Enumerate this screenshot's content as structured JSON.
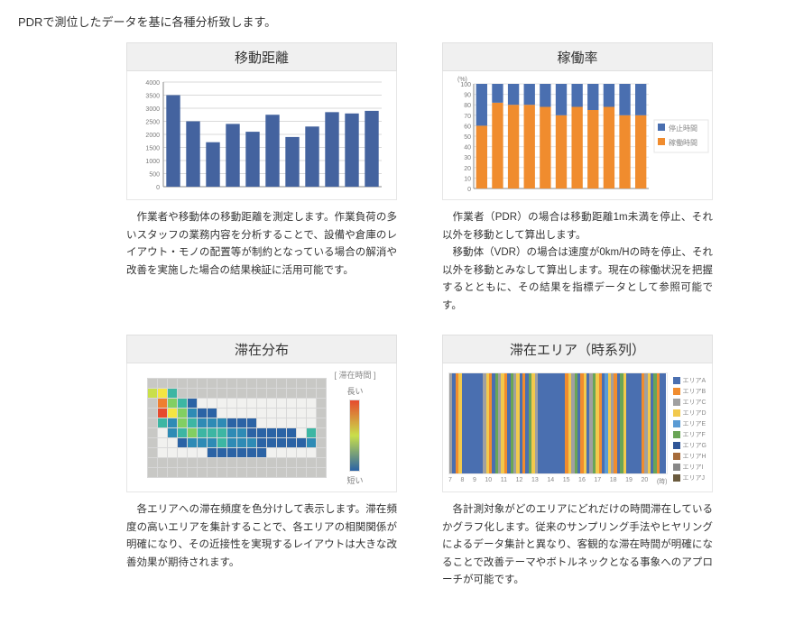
{
  "intro": "PDRで測位したデータを基に各種分析致します。",
  "panels": {
    "distance": {
      "title": "移動距離",
      "desc": "作業者や移動体の移動距離を測定します。作業負荷の多いスタッフの業務内容を分析することで、設備や倉庫のレイアウト・モノの配置等が制約となっている場合の解消や改善を実施した場合の結果検証に活用可能です。",
      "chart": {
        "type": "bar",
        "values": [
          3500,
          2500,
          1700,
          2400,
          2100,
          2750,
          1900,
          2300,
          2850,
          2800,
          2900
        ],
        "ylim": [
          0,
          4000
        ],
        "ytick_step": 500,
        "bar_color": "#44639f",
        "grid_color": "#d9d9d9",
        "axis_color": "#8a8a8a",
        "bg": "#ffffff",
        "tick_fontsize": 7,
        "tick_color": "#7a7a7a"
      }
    },
    "utilization": {
      "title": "稼働率",
      "desc_paras": [
        "作業者（PDR）の場合は移動距離1m未満を停止、それ以外を移動として算出します。",
        "移動体（VDR）の場合は速度が0km/Hの時を停止、それ以外を移動とみなして算出します。現在の稼働状況を把握するとともに、その結果を指標データとして参照可能です。"
      ],
      "chart": {
        "type": "stacked-bar",
        "ylabel": "(%)",
        "stop_values": [
          40,
          18,
          20,
          20,
          22,
          30,
          22,
          25,
          22,
          30,
          30
        ],
        "move_values": [
          60,
          82,
          80,
          80,
          78,
          70,
          78,
          75,
          78,
          70,
          70
        ],
        "ylim": [
          0,
          100
        ],
        "ytick_step": 10,
        "colors": {
          "stop": "#4a6fb0",
          "move": "#f08c2e"
        },
        "grid_color": "#e3e3e3",
        "axis_color": "#8a8a8a",
        "bg": "#ffffff",
        "tick_fontsize": 7,
        "tick_color": "#7a7a7a",
        "legend": [
          {
            "label": "停止時間",
            "color": "#4a6fb0"
          },
          {
            "label": "稼働時間",
            "color": "#f08c2e"
          }
        ]
      }
    },
    "heatmap": {
      "title": "滞在分布",
      "desc": "各エリアへの滞在頻度を色分けして表示します。滞在頻度の高いエリアを集計することで、各エリアの相関関係が明確になり、その近接性を実現するレイアウトは大きな改善効果が期待されます。",
      "chart": {
        "type": "heatmap",
        "rows": 10,
        "cols": 18,
        "legend_title": "[ 滞在時間 ]",
        "legend_high": "長い",
        "legend_low": "短い",
        "palette": [
          "#2b63a5",
          "#2e8bb5",
          "#3db6a3",
          "#82cf62",
          "#c9df4a",
          "#f4e542",
          "#f6b33a",
          "#ef7f2f",
          "#e64a2e"
        ],
        "floor": "#f1f1ef",
        "wall": "#c8c8c5",
        "cells": [
          [
            0,
            0,
            0,
            0,
            0,
            0,
            0,
            0,
            0,
            0,
            0,
            0,
            0,
            0,
            0,
            0,
            0,
            0
          ],
          [
            5,
            6,
            3,
            0,
            0,
            0,
            0,
            0,
            0,
            0,
            0,
            0,
            0,
            0,
            0,
            0,
            0,
            0
          ],
          [
            0,
            8,
            4,
            3,
            1,
            0,
            0,
            0,
            0,
            0,
            0,
            0,
            0,
            0,
            0,
            0,
            0,
            0
          ],
          [
            0,
            9,
            6,
            4,
            2,
            1,
            1,
            0,
            0,
            0,
            0,
            0,
            0,
            0,
            0,
            0,
            0,
            0
          ],
          [
            0,
            3,
            2,
            4,
            3,
            2,
            2,
            2,
            1,
            1,
            1,
            0,
            0,
            0,
            0,
            0,
            0,
            0
          ],
          [
            0,
            0,
            2,
            3,
            4,
            3,
            3,
            3,
            2,
            2,
            1,
            1,
            1,
            1,
            1,
            0,
            3,
            0
          ],
          [
            0,
            0,
            0,
            1,
            2,
            2,
            2,
            3,
            2,
            2,
            2,
            1,
            1,
            1,
            1,
            1,
            2,
            0
          ],
          [
            0,
            0,
            0,
            0,
            0,
            0,
            1,
            1,
            1,
            1,
            1,
            1,
            0,
            0,
            0,
            0,
            0,
            0
          ],
          [
            0,
            0,
            0,
            0,
            0,
            0,
            0,
            0,
            0,
            0,
            0,
            0,
            0,
            0,
            0,
            0,
            0,
            0
          ],
          [
            0,
            0,
            0,
            0,
            0,
            0,
            0,
            0,
            0,
            0,
            0,
            0,
            0,
            0,
            0,
            0,
            0,
            0
          ]
        ]
      }
    },
    "timeline": {
      "title": "滞在エリア（時系列）",
      "desc": "各計測対象がどのエリアにどれだけの時間滞在しているかグラフ化します。従来のサンプリング手法やヒヤリングによるデータ集計と異なり、客観的な滞在時間が明確になることで改善テーマやボトルネックとなる事象へのアプローチが可能です。",
      "chart": {
        "type": "timeline",
        "axis_ticks": [
          "7",
          "8",
          "9",
          "10",
          "11",
          "12",
          "13",
          "14",
          "15",
          "16",
          "17",
          "18",
          "19",
          "20",
          "(時)"
        ],
        "legend": [
          {
            "label": "エリアA",
            "color": "#4a6fb0"
          },
          {
            "label": "エリアB",
            "color": "#f08c2e"
          },
          {
            "label": "エリアC",
            "color": "#a0a0a0"
          },
          {
            "label": "エリアD",
            "color": "#f2c94c"
          },
          {
            "label": "エリアE",
            "color": "#5a9bd4"
          },
          {
            "label": "エリアF",
            "color": "#6aa556"
          },
          {
            "label": "エリアG",
            "color": "#2f5597"
          },
          {
            "label": "エリアH",
            "color": "#a66b3a"
          },
          {
            "label": "エリアI",
            "color": "#888888"
          },
          {
            "label": "エリアJ",
            "color": "#6b5b3e"
          }
        ],
        "segments": [
          {
            "w": 1,
            "c": "#a0a0a0"
          },
          {
            "w": 1,
            "c": "#4a6fb0"
          },
          {
            "w": 1,
            "c": "#f08c2e"
          },
          {
            "w": 1,
            "c": "#f2c94c"
          },
          {
            "w": 1,
            "c": "#4a6fb0"
          },
          {
            "w": 6,
            "c": "#4a6fb0"
          },
          {
            "w": 1,
            "c": "#a0a0a0"
          },
          {
            "w": 1,
            "c": "#f2c94c"
          },
          {
            "w": 1,
            "c": "#f08c2e"
          },
          {
            "w": 1,
            "c": "#4a6fb0"
          },
          {
            "w": 1,
            "c": "#6aa556"
          },
          {
            "w": 1,
            "c": "#a0a0a0"
          },
          {
            "w": 1,
            "c": "#f2c94c"
          },
          {
            "w": 1,
            "c": "#f08c2e"
          },
          {
            "w": 1,
            "c": "#4a6fb0"
          },
          {
            "w": 1,
            "c": "#6aa556"
          },
          {
            "w": 1,
            "c": "#a0a0a0"
          },
          {
            "w": 1,
            "c": "#f2c94c"
          },
          {
            "w": 1,
            "c": "#4a6fb0"
          },
          {
            "w": 1,
            "c": "#f08c2e"
          },
          {
            "w": 1,
            "c": "#4a6fb0"
          },
          {
            "w": 1,
            "c": "#6aa556"
          },
          {
            "w": 1,
            "c": "#f2c94c"
          },
          {
            "w": 1,
            "c": "#a0a0a0"
          },
          {
            "w": 9,
            "c": "#4a6fb0"
          },
          {
            "w": 1,
            "c": "#f08c2e"
          },
          {
            "w": 1,
            "c": "#f2c94c"
          },
          {
            "w": 1,
            "c": "#a0a0a0"
          },
          {
            "w": 1,
            "c": "#6aa556"
          },
          {
            "w": 1,
            "c": "#4a6fb0"
          },
          {
            "w": 1,
            "c": "#f08c2e"
          },
          {
            "w": 1,
            "c": "#f2c94c"
          },
          {
            "w": 1,
            "c": "#4a6fb0"
          },
          {
            "w": 1,
            "c": "#a0a0a0"
          },
          {
            "w": 1,
            "c": "#6aa556"
          },
          {
            "w": 1,
            "c": "#f2c94c"
          },
          {
            "w": 1,
            "c": "#f08c2e"
          },
          {
            "w": 1,
            "c": "#4a6fb0"
          },
          {
            "w": 1,
            "c": "#5a9bd4"
          },
          {
            "w": 1,
            "c": "#f2c94c"
          },
          {
            "w": 1,
            "c": "#a0a0a0"
          },
          {
            "w": 1,
            "c": "#f08c2e"
          },
          {
            "w": 1,
            "c": "#4a6fb0"
          },
          {
            "w": 1,
            "c": "#6aa556"
          },
          {
            "w": 1,
            "c": "#f2c94c"
          },
          {
            "w": 5,
            "c": "#4a6fb0"
          },
          {
            "w": 1,
            "c": "#f08c2e"
          },
          {
            "w": 1,
            "c": "#a0a0a0"
          },
          {
            "w": 1,
            "c": "#f2c94c"
          },
          {
            "w": 1,
            "c": "#4a6fb0"
          },
          {
            "w": 1,
            "c": "#6aa556"
          },
          {
            "w": 1,
            "c": "#f08c2e"
          },
          {
            "w": 2,
            "c": "#4a6fb0"
          }
        ]
      }
    }
  }
}
